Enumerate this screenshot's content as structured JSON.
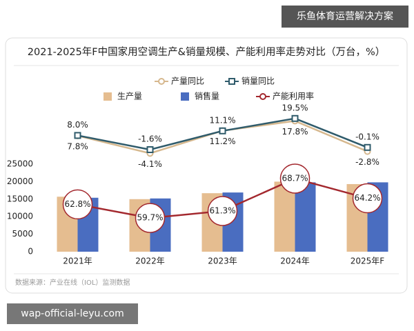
{
  "chart_data": {
    "type": "combo",
    "title": "2021-2025年F中国家用空调生产&销量规模、产能利用率走势对比（万台，%）",
    "categories": [
      "2021年",
      "2022年",
      "2023年",
      "2024年",
      "2025年F"
    ],
    "series": [
      {
        "name": "产量同比",
        "type": "line",
        "axis": "y3",
        "color": "#D6B88E",
        "marker": "circle",
        "label_position": "below",
        "values": [
          7.8,
          -4.1,
          11.2,
          17.8,
          -2.8
        ],
        "value_labels": [
          "7.8%",
          "-4.1%",
          "11.2%",
          "17.8%",
          "-2.8%"
        ]
      },
      {
        "name": "销量同比",
        "type": "line",
        "axis": "y3",
        "color": "#2F5B6B",
        "marker": "square",
        "label_position": "above",
        "values": [
          8.0,
          -1.6,
          11.1,
          19.5,
          -0.1
        ],
        "value_labels": [
          "8.0%",
          "-1.6%",
          "11.1%",
          "19.5%",
          "-0.1%"
        ]
      },
      {
        "name": "生产量",
        "type": "bar",
        "color": "#E5BD90",
        "values": [
          15700,
          15000,
          16700,
          20000,
          19300
        ]
      },
      {
        "name": "销售量",
        "type": "bar",
        "color": "#4A6DC0",
        "values": [
          15400,
          15200,
          16900,
          19800,
          19800
        ]
      },
      {
        "name": "产能利用率",
        "type": "line",
        "axis": "y2",
        "color": "#A3282E",
        "marker": "bubble",
        "label_position": "bubble",
        "values": [
          62.8,
          59.7,
          61.3,
          68.7,
          64.2
        ],
        "value_labels": [
          "62.8%",
          "59.7%",
          "61.3%",
          "68.7%",
          "64.2%"
        ]
      }
    ],
    "ylim": [
      0,
      25000
    ],
    "yticks": [
      0,
      5000,
      10000,
      15000,
      20000,
      25000
    ],
    "y2lim": [
      52,
      72
    ],
    "y3lim": [
      -10,
      25
    ],
    "grid": false
  },
  "source": "数据来源：产业在线（IOL）监测数据",
  "overlays": [
    "乐鱼体育运营解决方案",
    "wap-official-leyu.com"
  ]
}
